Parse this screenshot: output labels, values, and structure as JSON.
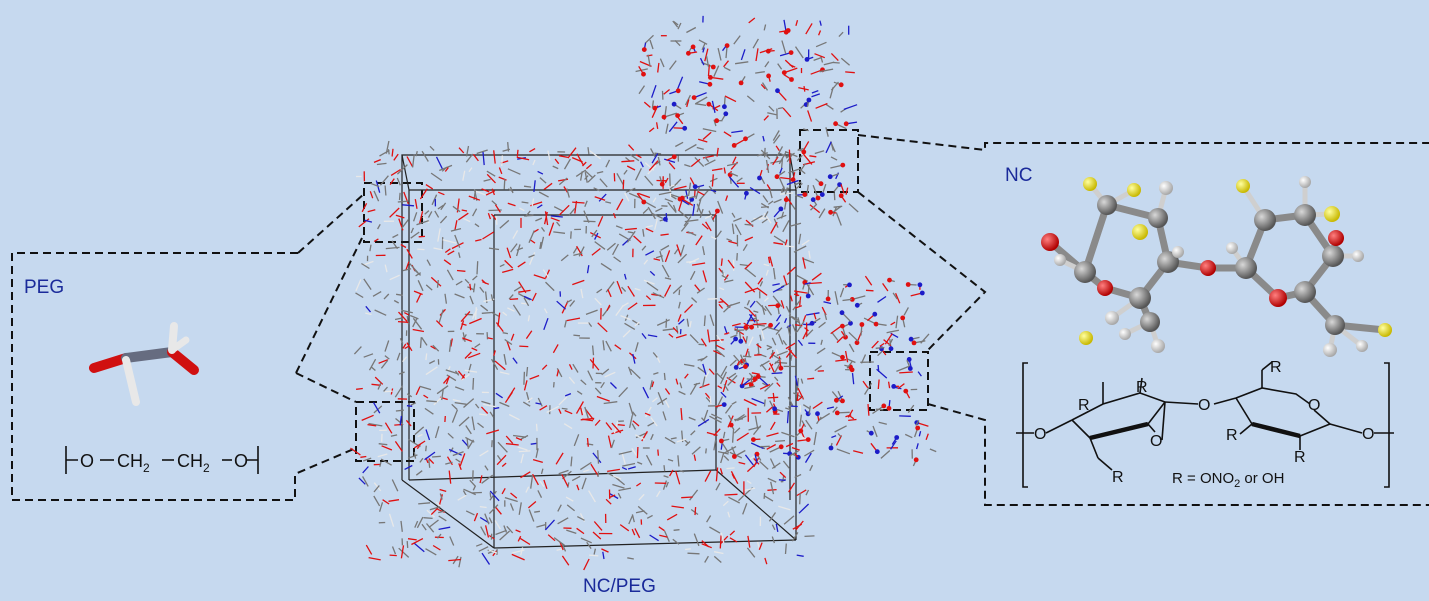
{
  "labels": {
    "peg": "PEG",
    "nc": "NC",
    "composite": "NC/PEG"
  },
  "peg_formula": {
    "o_left": "O",
    "ch2_a": "CH",
    "ch2_a_sub": "2",
    "ch2_b": "CH",
    "ch2_b_sub": "2",
    "o_right": "O"
  },
  "nc_structure": {
    "r_label": "R",
    "o_label": "O",
    "legend_prefix": "R = ",
    "legend_onitro": "ONO",
    "legend_onitro_sub": "2",
    "legend_or": " or ",
    "legend_oh": "OH"
  },
  "colors": {
    "background": "#c6d9ef",
    "label_blue": "#1a2a9a",
    "carbon": "#777777",
    "oxygen": "#e01010",
    "nitrogen": "#1c1cc8",
    "hydrogen": "#e8e8e8",
    "substituent": "#f0e020"
  }
}
